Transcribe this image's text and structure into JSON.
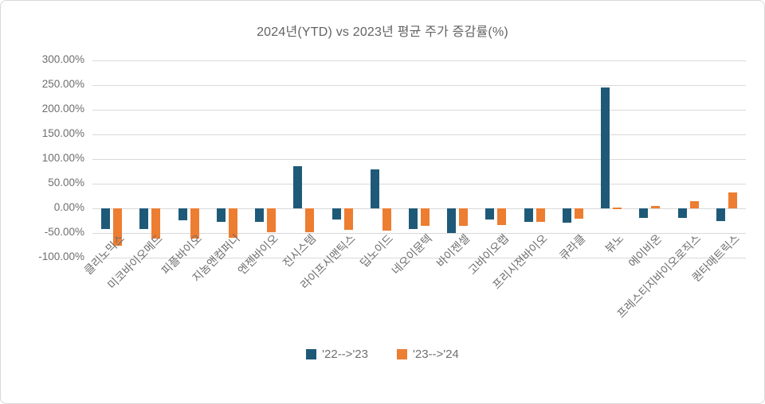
{
  "title": "2024년(YTD) vs 2023년 평균 주가 증감률(%)",
  "colors": {
    "series_blue": "#1e5a78",
    "series_orange": "#ed7d31",
    "gridline": "#d9d9d9",
    "axis_text": "#6e6e6e",
    "title_text": "#636363",
    "border": "#d9d9d9",
    "background": "#ffffff"
  },
  "legend": {
    "items": [
      {
        "label": "'22-->'23",
        "color": "#1e5a78"
      },
      {
        "label": "'23-->'24",
        "color": "#ed7d31"
      }
    ]
  },
  "chart_data": {
    "type": "bar",
    "title": "2024년(YTD) vs 2023년 평균 주가 증감률(%)",
    "categories": [
      "클리노믹스",
      "미코바이오메드",
      "피플바이오",
      "지놈앤컴퍼니",
      "엔젠바이오",
      "진시스템",
      "라이프시맨틱스",
      "딥노이드",
      "네오이뮨텍",
      "바이젠셀",
      "고바이오랩",
      "프리시젼바이오",
      "큐라클",
      "뷰노",
      "에이비온",
      "프레스티지바이오로직스",
      "퀀타매트릭스"
    ],
    "series": [
      {
        "name": "'22-->'23",
        "color": "#1e5a78",
        "values": [
          -42,
          -42,
          -24,
          -28,
          -28,
          85,
          -23,
          79,
          -42,
          -50,
          -23,
          -27,
          -29,
          245,
          -20,
          -20,
          -26
        ]
      },
      {
        "name": "'23-->'24",
        "color": "#ed7d31",
        "values": [
          -76,
          -61,
          -62,
          -60,
          -49,
          -49,
          -43,
          -45,
          -36,
          -36,
          -34,
          -28,
          -21,
          2,
          5,
          14,
          32
        ]
      }
    ],
    "xlabel": "",
    "ylabel": "",
    "ylim": [
      -100,
      300
    ],
    "y_tick_values": [
      300,
      250,
      200,
      150,
      100,
      50,
      0,
      -50,
      -100
    ],
    "y_tick_labels": [
      "300.00%",
      "250.00%",
      "200.00%",
      "150.00%",
      "100.00%",
      "50.00%",
      "0.00%",
      "-50.00%",
      "-100.00%"
    ],
    "grid": true,
    "legend_position": "bottom"
  }
}
